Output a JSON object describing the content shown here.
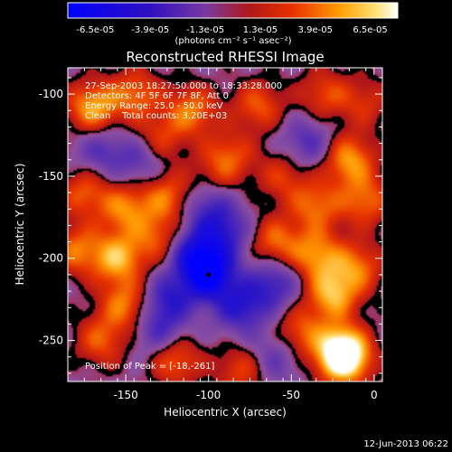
{
  "chart_data": {
    "type": "heatmap",
    "title": "Reconstructed RHESSI Image",
    "xlabel": "Heliocentric X (arcsec)",
    "ylabel": "Heliocentric Y (arcsec)",
    "xlim": [
      -185,
      5
    ],
    "ylim": [
      -275,
      -84
    ],
    "xticks": [
      -150,
      -100,
      -50,
      0
    ],
    "yticks": [
      -250,
      -200,
      -150,
      -100
    ],
    "colorbar": {
      "range": [
        -6.5e-05,
        6.5e-05
      ],
      "tick_labels": [
        "-6.5e-05",
        "-3.9e-05",
        "-1.3e-05",
        "1.3e-05",
        "3.9e-05",
        "6.5e-05"
      ],
      "units_label": "(photons cm⁻² s⁻¹ asec⁻²)"
    },
    "annotations": [
      "27-Sep-2003 18:27:50.000 to 18:33:28.000",
      "Detectors: 4F 5F 6F 7F 8F, Att 0",
      "Energy Range: 25.0 - 50.0 keV",
      "Clean    Total counts: 3.20E+03",
      "Position of Peak = [-18,-261]"
    ],
    "peak_position": [
      -18,
      -261
    ],
    "blobs": [
      {
        "x": -170,
        "y": -108,
        "v": 0.75
      },
      {
        "x": -144,
        "y": -100,
        "v": 0.55
      },
      {
        "x": -110,
        "y": -110,
        "v": 0.6
      },
      {
        "x": -70,
        "y": -107,
        "v": 0.5
      },
      {
        "x": -30,
        "y": -100,
        "v": 0.45
      },
      {
        "x": -5,
        "y": -105,
        "v": 0.35
      },
      {
        "x": -130,
        "y": -128,
        "v": 0.45
      },
      {
        "x": -88,
        "y": -138,
        "v": 0.5
      },
      {
        "x": -55,
        "y": -150,
        "v": 0.4
      },
      {
        "x": -15,
        "y": -140,
        "v": 0.7
      },
      {
        "x": -5,
        "y": -165,
        "v": 0.55
      },
      {
        "x": -175,
        "y": -160,
        "v": 0.5
      },
      {
        "x": -150,
        "y": -170,
        "v": 0.6
      },
      {
        "x": -125,
        "y": -162,
        "v": 0.55
      },
      {
        "x": -98,
        "y": -155,
        "v": 0.35
      },
      {
        "x": -35,
        "y": -168,
        "v": 0.55
      },
      {
        "x": -180,
        "y": -195,
        "v": 0.55
      },
      {
        "x": -155,
        "y": -200,
        "v": 0.75
      },
      {
        "x": -130,
        "y": -188,
        "v": 0.5
      },
      {
        "x": -60,
        "y": -190,
        "v": 0.55
      },
      {
        "x": -35,
        "y": -198,
        "v": 0.65
      },
      {
        "x": -10,
        "y": -205,
        "v": 0.55
      },
      {
        "x": -25,
        "y": -222,
        "v": 0.75
      },
      {
        "x": -150,
        "y": -228,
        "v": 0.6
      },
      {
        "x": -165,
        "y": -250,
        "v": 0.5
      },
      {
        "x": -45,
        "y": -245,
        "v": 0.5
      },
      {
        "x": -20,
        "y": -255,
        "v": 0.6
      },
      {
        "x": -18,
        "y": -261,
        "v": 1.0
      },
      {
        "x": -120,
        "y": -262,
        "v": 0.55
      },
      {
        "x": -80,
        "y": -268,
        "v": 0.45
      },
      {
        "x": -100,
        "y": -210,
        "v": -1.0
      },
      {
        "x": -110,
        "y": -195,
        "v": -0.6
      },
      {
        "x": -100,
        "y": -165,
        "v": -0.55
      },
      {
        "x": -80,
        "y": -230,
        "v": -0.55
      },
      {
        "x": -125,
        "y": -225,
        "v": -0.5
      },
      {
        "x": -60,
        "y": -215,
        "v": -0.5
      },
      {
        "x": -140,
        "y": -140,
        "v": -0.4
      },
      {
        "x": -90,
        "y": -185,
        "v": -0.5
      },
      {
        "x": -40,
        "y": -130,
        "v": -0.4
      },
      {
        "x": -165,
        "y": -135,
        "v": -0.35
      },
      {
        "x": -130,
        "y": -245,
        "v": -0.4
      },
      {
        "x": -60,
        "y": -260,
        "v": -0.35
      }
    ]
  },
  "footer": {
    "date": "12-Jun-2013 06:22"
  }
}
